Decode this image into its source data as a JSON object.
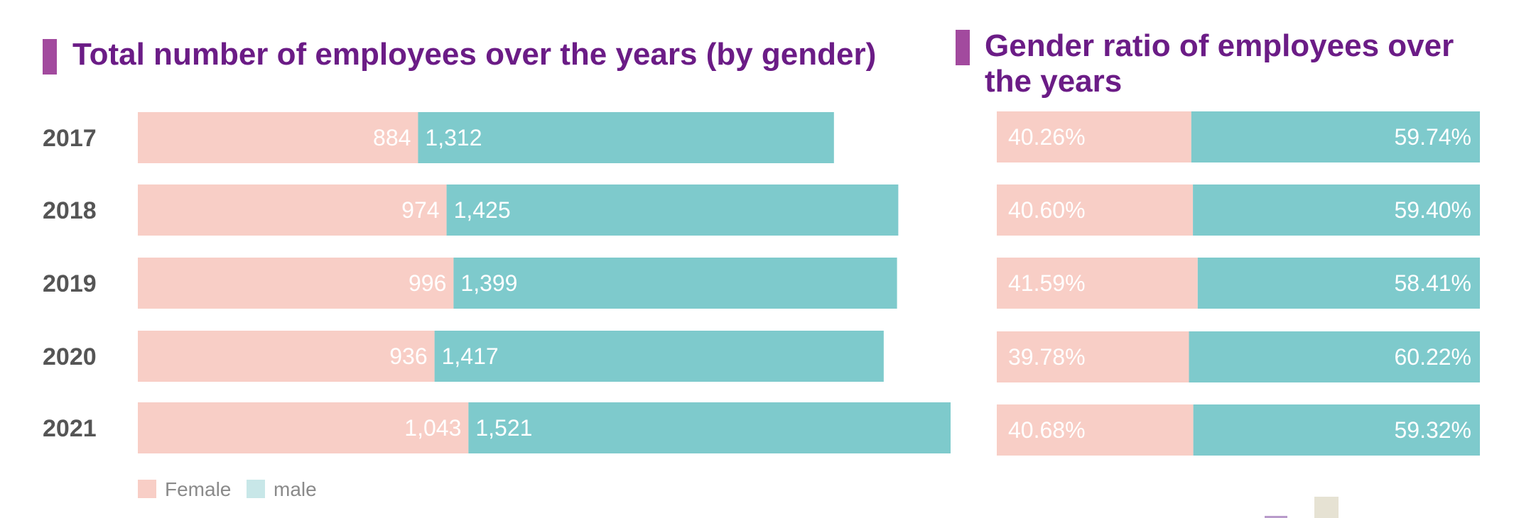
{
  "colors": {
    "female": "#f8cec6",
    "male": "#7ecacc",
    "title": "#6b1c86",
    "marker": "#a24a9e",
    "legend_male": "#c8e7e8"
  },
  "chart_data": [
    {
      "type": "bar",
      "orientation": "horizontal",
      "stacked": true,
      "title": "Total number of employees over the years (by gender)",
      "categories": [
        "2017",
        "2018",
        "2019",
        "2020",
        "2021"
      ],
      "series": [
        {
          "name": "Female",
          "values": [
            884,
            974,
            996,
            936,
            1043
          ],
          "labels": [
            "884",
            "974",
            "996",
            "936",
            "1,043"
          ]
        },
        {
          "name": "male",
          "values": [
            1312,
            1425,
            1399,
            1417,
            1521
          ],
          "labels": [
            "1,312",
            "1,425",
            "1,399",
            "1,417",
            "1,521"
          ]
        }
      ],
      "legend": [
        "Female",
        "male"
      ],
      "legend_position": "bottom-left",
      "grid": false
    },
    {
      "type": "bar",
      "orientation": "horizontal",
      "stacked": true,
      "percent": true,
      "title": "Gender ratio of employees over the years",
      "categories": [
        "2017",
        "2018",
        "2019",
        "2020",
        "2021"
      ],
      "series": [
        {
          "name": "Female",
          "values": [
            40.26,
            40.6,
            41.59,
            39.78,
            40.68
          ],
          "labels": [
            "40.26%",
            "40.60%",
            "41.59%",
            "39.78%",
            "40.68%"
          ]
        },
        {
          "name": "male",
          "values": [
            59.74,
            59.4,
            58.41,
            60.22,
            59.32
          ],
          "labels": [
            "59.74%",
            "59.40%",
            "58.41%",
            "60.22%",
            "59.32%"
          ]
        }
      ],
      "grid": false
    }
  ]
}
